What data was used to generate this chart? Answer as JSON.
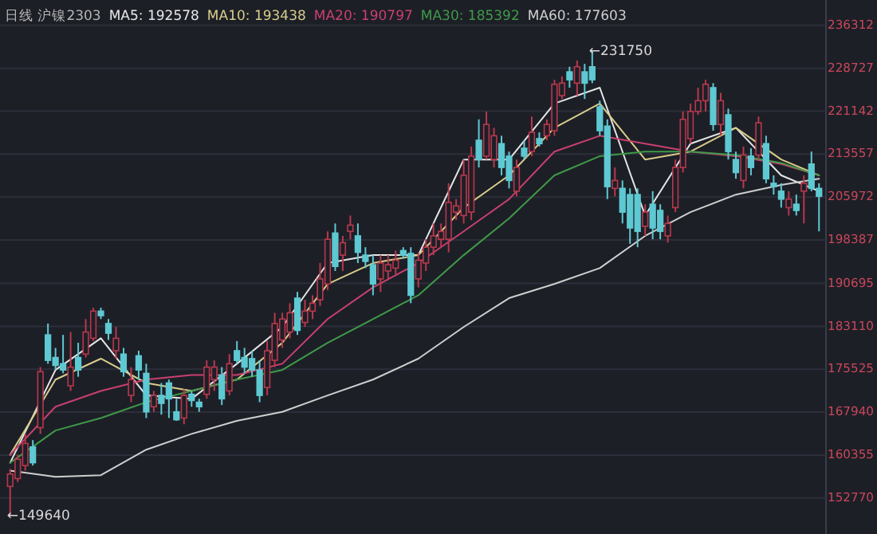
{
  "chart_data": {
    "type": "candlestick",
    "title": "日线 沪镍2303",
    "legend": "top left",
    "grid": "y",
    "ylim": [
      146400,
      240800
    ],
    "yticks": [
      236312,
      228727,
      221142,
      213557,
      205972,
      198387,
      190695,
      183110,
      175525,
      167940,
      160355,
      152770
    ],
    "categories": [
      null,
      null,
      null,
      null,
      null,
      null,
      null,
      null,
      null,
      null,
      null,
      null,
      null,
      null,
      null,
      null,
      null,
      null,
      null,
      null,
      null,
      null,
      null,
      null,
      null,
      null,
      null,
      null,
      null,
      null,
      null,
      null,
      null,
      null,
      null,
      null,
      null,
      null,
      null,
      null,
      null,
      null,
      null,
      null,
      null,
      null,
      null,
      null,
      null,
      null,
      null,
      null,
      null,
      null,
      null,
      null,
      null,
      null,
      null,
      null,
      null,
      null,
      null,
      null,
      null,
      null,
      null,
      null,
      null,
      null,
      null,
      null,
      null,
      null,
      null,
      null,
      null,
      null,
      null,
      null,
      null,
      null,
      null,
      null,
      null,
      null,
      null,
      null,
      null,
      null,
      null,
      null,
      null,
      null,
      null,
      null,
      null,
      null,
      null,
      null,
      null,
      null,
      null,
      null,
      null,
      null,
      null,
      null
    ],
    "ohlc": [
      [
        154800,
        157900,
        149640,
        157000
      ],
      [
        156200,
        160400,
        155600,
        159600
      ],
      [
        158500,
        164100,
        157600,
        162400
      ],
      [
        161800,
        163000,
        158500,
        159000
      ],
      [
        165200,
        175900,
        164100,
        175100
      ],
      [
        181600,
        183600,
        176500,
        177100
      ],
      [
        177600,
        179300,
        175400,
        176200
      ],
      [
        176500,
        181600,
        174800,
        175400
      ],
      [
        172600,
        182100,
        171700,
        175900
      ],
      [
        177600,
        180200,
        174200,
        175400
      ],
      [
        178200,
        184400,
        177600,
        182100
      ],
      [
        181000,
        186400,
        180500,
        185800
      ],
      [
        185800,
        186400,
        184400,
        185000
      ],
      [
        183600,
        184400,
        180700,
        181900
      ],
      [
        178800,
        183000,
        177400,
        181000
      ],
      [
        178200,
        179300,
        174200,
        175100
      ],
      [
        170900,
        175900,
        169700,
        173700
      ],
      [
        177900,
        178800,
        173700,
        175400
      ],
      [
        174800,
        176500,
        166900,
        168000
      ],
      [
        168900,
        171700,
        168000,
        170900
      ],
      [
        170900,
        173100,
        167500,
        169500
      ],
      [
        173100,
        173700,
        166900,
        170300
      ],
      [
        168000,
        170300,
        166400,
        166600
      ],
      [
        166900,
        172000,
        165800,
        170900
      ],
      [
        171100,
        171700,
        168900,
        170000
      ],
      [
        169700,
        170300,
        168000,
        168900
      ],
      [
        171100,
        177100,
        170300,
        175900
      ],
      [
        173700,
        177100,
        171700,
        175900
      ],
      [
        174500,
        175900,
        169200,
        170300
      ],
      [
        171700,
        178200,
        170900,
        176500
      ],
      [
        178800,
        180500,
        176500,
        177100
      ],
      [
        177600,
        179300,
        174800,
        175900
      ],
      [
        177400,
        178800,
        174200,
        175400
      ],
      [
        175400,
        177100,
        169700,
        170900
      ],
      [
        172300,
        180500,
        170900,
        178800
      ],
      [
        177100,
        185500,
        175900,
        183600
      ],
      [
        180700,
        185500,
        179300,
        184400
      ],
      [
        182100,
        187200,
        181000,
        185500
      ],
      [
        188100,
        189200,
        181600,
        182400
      ],
      [
        183800,
        187800,
        183000,
        185800
      ],
      [
        185800,
        188600,
        184400,
        187200
      ],
      [
        187800,
        194300,
        186700,
        191500
      ],
      [
        190600,
        199900,
        189500,
        198500
      ],
      [
        199600,
        201300,
        192900,
        193700
      ],
      [
        195700,
        199100,
        192900,
        197900
      ],
      [
        199900,
        202700,
        198500,
        201000
      ],
      [
        199100,
        201300,
        194300,
        196200
      ],
      [
        195700,
        197100,
        193400,
        194600
      ],
      [
        194000,
        195700,
        188600,
        190600
      ],
      [
        191500,
        195700,
        189200,
        194300
      ],
      [
        192900,
        195700,
        191500,
        194000
      ],
      [
        193400,
        196500,
        192300,
        194800
      ],
      [
        196500,
        197100,
        195100,
        195700
      ],
      [
        196000,
        197100,
        187200,
        188600
      ],
      [
        191500,
        196200,
        190000,
        194800
      ],
      [
        194300,
        198500,
        192900,
        197100
      ],
      [
        197100,
        201300,
        195700,
        199100
      ],
      [
        198500,
        201300,
        197100,
        199900
      ],
      [
        198500,
        208400,
        196200,
        205000
      ],
      [
        203300,
        205600,
        201900,
        204400
      ],
      [
        202700,
        212600,
        201300,
        209800
      ],
      [
        203300,
        214900,
        201900,
        213200
      ],
      [
        216000,
        219700,
        211200,
        212600
      ],
      [
        213200,
        221100,
        212600,
        218800
      ],
      [
        212600,
        218200,
        211200,
        216800
      ],
      [
        215400,
        216800,
        209800,
        211200
      ],
      [
        213200,
        214000,
        207500,
        208900
      ],
      [
        207000,
        212600,
        206100,
        211200
      ],
      [
        214600,
        216000,
        212600,
        213200
      ],
      [
        214000,
        220200,
        213200,
        217400
      ],
      [
        216300,
        217400,
        214900,
        215400
      ],
      [
        216800,
        219700,
        216000,
        218800
      ],
      [
        217700,
        226700,
        216800,
        225900
      ],
      [
        223900,
        227300,
        223300,
        226100
      ],
      [
        228100,
        229000,
        225300,
        226700
      ],
      [
        226100,
        230100,
        223900,
        229000
      ],
      [
        228100,
        229500,
        223300,
        226100
      ],
      [
        229000,
        231750,
        226100,
        226700
      ],
      [
        221900,
        223000,
        216800,
        217700
      ],
      [
        218500,
        219700,
        205600,
        207800
      ],
      [
        207500,
        211200,
        206100,
        208900
      ],
      [
        207500,
        208900,
        201300,
        203300
      ],
      [
        206400,
        207500,
        197700,
        200500
      ],
      [
        206400,
        207500,
        197100,
        199900
      ],
      [
        200800,
        204700,
        199100,
        203300
      ],
      [
        204700,
        207000,
        198500,
        200500
      ],
      [
        203600,
        204700,
        198500,
        199900
      ],
      [
        199100,
        202700,
        197900,
        201300
      ],
      [
        204100,
        212600,
        203300,
        211200
      ],
      [
        211200,
        221100,
        210300,
        219700
      ],
      [
        216300,
        222500,
        215400,
        221100
      ],
      [
        221100,
        225300,
        220500,
        223000
      ],
      [
        223000,
        226700,
        221100,
        225900
      ],
      [
        225300,
        226100,
        217700,
        218800
      ],
      [
        218800,
        224400,
        216800,
        223000
      ],
      [
        220500,
        221600,
        212600,
        214000
      ],
      [
        212600,
        214000,
        209200,
        210300
      ],
      [
        208900,
        214900,
        207500,
        213400
      ],
      [
        213200,
        214600,
        209800,
        211200
      ],
      [
        213400,
        220200,
        212600,
        219100
      ],
      [
        215400,
        216800,
        208400,
        209200
      ],
      [
        208400,
        209800,
        206400,
        207800
      ],
      [
        207000,
        208400,
        204100,
        205600
      ],
      [
        204100,
        207000,
        202700,
        205600
      ],
      [
        204700,
        206400,
        202700,
        203600
      ],
      [
        207000,
        209800,
        201300,
        208400
      ],
      [
        211800,
        214000,
        207000,
        207500
      ],
      [
        207500,
        208400,
        199900,
        206100
      ]
    ],
    "series": [
      {
        "name": "MA5: 192578",
        "type": "line",
        "color": "#e6e6e6",
        "values": [
          159000,
          null,
          null,
          null,
          null,
          null,
          175400,
          null,
          null,
          null,
          null,
          null,
          181000,
          null,
          null,
          null,
          null,
          null,
          170900,
          null,
          null,
          null,
          null,
          null,
          170300,
          null,
          null,
          null,
          null,
          null,
          176500,
          null,
          null,
          null,
          null,
          null,
          183000,
          null,
          null,
          null,
          null,
          null,
          194300,
          null,
          null,
          null,
          null,
          null,
          195700,
          null,
          null,
          null,
          null,
          null,
          195700,
          null,
          null,
          null,
          null,
          null,
          212600,
          null,
          null,
          null,
          null,
          null,
          212600,
          null,
          null,
          null,
          null,
          null,
          222500,
          null,
          null,
          null,
          null,
          null,
          225300,
          null,
          null,
          null,
          null,
          null,
          202700,
          null,
          null,
          null,
          null,
          null,
          215400,
          null,
          null,
          null,
          null,
          null,
          218200,
          null,
          null,
          null,
          null,
          null,
          209800,
          null,
          null,
          null,
          null,
          207000
        ]
      },
      {
        "name": "MA10: 193438",
        "type": "line",
        "color": "#d8cc8a",
        "values": [
          160400,
          null,
          null,
          null,
          null,
          null,
          173700,
          null,
          null,
          null,
          null,
          null,
          177400,
          null,
          null,
          null,
          null,
          null,
          173100,
          null,
          null,
          null,
          null,
          null,
          171700,
          null,
          null,
          null,
          null,
          null,
          173700,
          null,
          null,
          null,
          null,
          null,
          180200,
          null,
          null,
          null,
          null,
          null,
          190600,
          null,
          null,
          null,
          null,
          null,
          194300,
          null,
          null,
          null,
          null,
          null,
          195700,
          null,
          null,
          null,
          null,
          null,
          204100,
          null,
          null,
          null,
          null,
          null,
          209800,
          null,
          null,
          null,
          null,
          null,
          218200,
          null,
          null,
          null,
          null,
          null,
          222500,
          null,
          null,
          null,
          null,
          null,
          212600,
          null,
          null,
          null,
          null,
          null,
          214000,
          null,
          null,
          null,
          null,
          null,
          218200,
          null,
          null,
          null,
          null,
          null,
          212600,
          null,
          null,
          null,
          null,
          209800
        ]
      },
      {
        "name": "MA20: 190797",
        "type": "line",
        "color": "#c8406e",
        "values": [
          160400,
          null,
          null,
          null,
          null,
          null,
          168900,
          null,
          null,
          null,
          null,
          null,
          171700,
          null,
          null,
          null,
          null,
          null,
          173700,
          null,
          null,
          null,
          null,
          null,
          174500,
          null,
          null,
          null,
          null,
          null,
          174500,
          null,
          null,
          null,
          null,
          null,
          176500,
          null,
          null,
          null,
          null,
          null,
          184400,
          null,
          null,
          null,
          null,
          null,
          190000,
          null,
          null,
          null,
          null,
          null,
          194300,
          null,
          null,
          null,
          null,
          null,
          199900,
          null,
          null,
          null,
          null,
          null,
          205600,
          null,
          null,
          null,
          null,
          null,
          214000,
          null,
          null,
          null,
          null,
          null,
          216800,
          null,
          null,
          null,
          null,
          null,
          215400,
          null,
          null,
          null,
          null,
          null,
          214000,
          null,
          null,
          null,
          null,
          null,
          213200,
          null,
          null,
          null,
          null,
          null,
          211800,
          null,
          null,
          null,
          null,
          209800
        ]
      },
      {
        "name": "MA30: 185392",
        "type": "line",
        "color": "#3f9a48",
        "values": [
          159000,
          null,
          null,
          null,
          null,
          null,
          164700,
          null,
          null,
          null,
          null,
          null,
          166900,
          null,
          null,
          null,
          null,
          null,
          169700,
          null,
          null,
          null,
          null,
          null,
          171700,
          null,
          null,
          null,
          null,
          null,
          173700,
          null,
          null,
          null,
          null,
          null,
          175400,
          null,
          null,
          null,
          null,
          null,
          180200,
          null,
          null,
          null,
          null,
          null,
          184400,
          null,
          null,
          null,
          null,
          null,
          188600,
          null,
          null,
          null,
          null,
          null,
          195700,
          null,
          null,
          null,
          null,
          null,
          202200,
          null,
          null,
          null,
          null,
          null,
          209800,
          null,
          null,
          null,
          null,
          null,
          213200,
          null,
          null,
          null,
          null,
          null,
          214000,
          null,
          null,
          null,
          null,
          null,
          214000,
          null,
          null,
          null,
          null,
          null,
          213400,
          null,
          null,
          null,
          null,
          null,
          212000,
          null,
          null,
          null,
          null,
          209800
        ]
      },
      {
        "name": "MA60: 177603",
        "type": "line",
        "color": "#cfcfcf",
        "values": [
          157600,
          null,
          null,
          null,
          null,
          null,
          156500,
          null,
          null,
          null,
          null,
          null,
          156800,
          null,
          null,
          null,
          null,
          null,
          161300,
          null,
          null,
          null,
          null,
          null,
          164100,
          null,
          null,
          null,
          null,
          null,
          166400,
          null,
          null,
          null,
          null,
          null,
          168000,
          null,
          null,
          null,
          null,
          null,
          170900,
          null,
          null,
          null,
          null,
          null,
          173700,
          null,
          null,
          null,
          null,
          null,
          177400,
          null,
          null,
          null,
          null,
          null,
          183000,
          null,
          null,
          null,
          null,
          null,
          188100,
          null,
          null,
          null,
          null,
          null,
          190600,
          null,
          null,
          null,
          null,
          null,
          193400,
          null,
          null,
          null,
          null,
          null,
          199100,
          null,
          null,
          null,
          null,
          null,
          203300,
          null,
          null,
          null,
          null,
          null,
          206400,
          null,
          null,
          null,
          null,
          null,
          208100,
          null,
          null,
          null,
          null,
          209200
        ]
      }
    ],
    "annotations": [
      "←231750",
      "←149640"
    ]
  }
}
